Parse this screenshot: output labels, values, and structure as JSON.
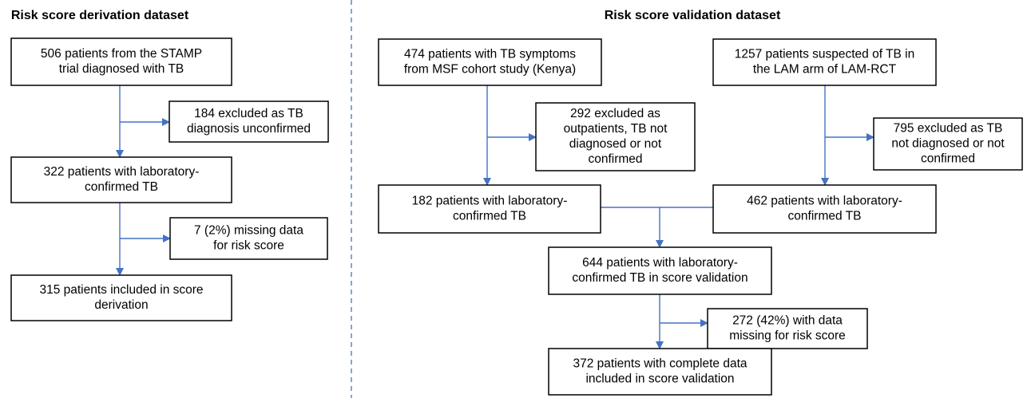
{
  "titles": {
    "derivation": "Risk score derivation dataset",
    "validation": "Risk score validation dataset"
  },
  "nodes": [
    {
      "lines": [
        "506 patients from the STAMP",
        "trial diagnosed with TB"
      ]
    },
    {
      "lines": [
        "184 excluded as TB",
        "diagnosis unconfirmed"
      ]
    },
    {
      "lines": [
        "322 patients with laboratory-",
        "confirmed TB"
      ]
    },
    {
      "lines": [
        "7 (2%) missing data",
        "for risk score"
      ]
    },
    {
      "lines": [
        "315 patients included in score",
        "derivation"
      ]
    },
    {
      "lines": [
        "474 patients with TB symptoms",
        "from MSF cohort study (Kenya)"
      ]
    },
    {
      "lines": [
        "292 excluded as",
        "outpatients, TB not",
        "diagnosed or not",
        "confirmed"
      ]
    },
    {
      "lines": [
        "1257 patients suspected of TB in",
        "the LAM arm of LAM-RCT"
      ]
    },
    {
      "lines": [
        "795 excluded as TB",
        "not diagnosed or not",
        "confirmed"
      ]
    },
    {
      "lines": [
        "182 patients with laboratory-",
        "confirmed TB"
      ]
    },
    {
      "lines": [
        "462 patients with laboratory-",
        "confirmed TB"
      ]
    },
    {
      "lines": [
        "644 patients with laboratory-",
        "confirmed TB in score validation"
      ]
    },
    {
      "lines": [
        "272 (42%) with data",
        "missing for risk score"
      ]
    },
    {
      "lines": [
        "372 patients with complete data",
        "included in score validation"
      ]
    }
  ]
}
